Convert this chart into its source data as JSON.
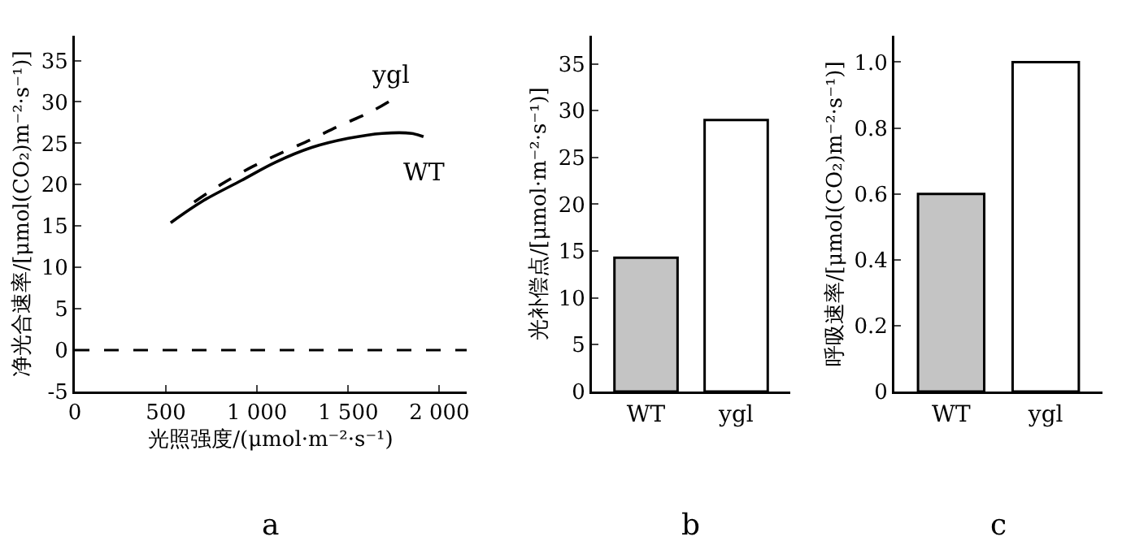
{
  "chart_data": [
    {
      "type": "line",
      "xlabel": "光照强度/(μmol·m⁻²·s⁻¹)",
      "ylabel": "净光合速率/[μmol(CO₂)m⁻²·s⁻¹)]",
      "annotations": [
        "a"
      ],
      "xlim": [
        0,
        2150
      ],
      "xticks": [
        0,
        500,
        {
          "value": 1000,
          "label": "1 000"
        },
        {
          "value": 1500,
          "label": "1 500"
        },
        {
          "value": 2000,
          "label": "2 000"
        }
      ],
      "ylim": [
        -5,
        38
      ],
      "yticks": [
        -5,
        0,
        5,
        10,
        15,
        20,
        25,
        30,
        35
      ],
      "grid": false,
      "legend": false,
      "series": [
        {
          "name": "ygl",
          "color": "#000000",
          "line_style": "dashed",
          "x": [
            655,
            800,
            977,
            1150,
            1300,
            1450,
            1623,
            1735
          ],
          "values": [
            17.9,
            20.0,
            22.2,
            24.0,
            25.5,
            27.1,
            28.8,
            30.2
          ]
        },
        {
          "name": "WT",
          "color": "#000000",
          "line_style": "solid",
          "x": [
            526,
            700,
            913,
            1100,
            1300,
            1500,
            1687,
            1848,
            1913
          ],
          "values": [
            15.4,
            18.0,
            20.5,
            22.7,
            24.5,
            25.6,
            26.2,
            26.2,
            25.8
          ]
        }
      ],
      "ref_lines": [
        {
          "axis": "y",
          "value": 0,
          "line_style": "dashed",
          "color": "#000000"
        }
      ]
    },
    {
      "type": "bar",
      "ylabel": "光补偿点/[μmol·m⁻²·s⁻¹)]",
      "annotations": [
        "b"
      ],
      "categories": [
        "WT",
        "ygl"
      ],
      "values": [
        14.3,
        29
      ],
      "colors": [
        "#c4c4c4",
        "#ffffff"
      ],
      "ylim": [
        0,
        38
      ],
      "yticks": [
        0,
        5,
        10,
        15,
        20,
        25,
        30,
        35
      ],
      "grid": false
    },
    {
      "type": "bar",
      "ylabel": "呼吸速率/[μmol(CO₂)m⁻²·s⁻¹)]",
      "annotations": [
        "c"
      ],
      "categories": [
        "WT",
        "ygl"
      ],
      "values": [
        0.6,
        1.0
      ],
      "colors": [
        "#c4c4c4",
        "#ffffff"
      ],
      "ylim": [
        0,
        1.08
      ],
      "yticks": [
        0,
        0.2,
        0.4,
        0.6,
        0.8,
        {
          "value": 1.0,
          "label": "1.0"
        }
      ],
      "grid": false
    }
  ]
}
